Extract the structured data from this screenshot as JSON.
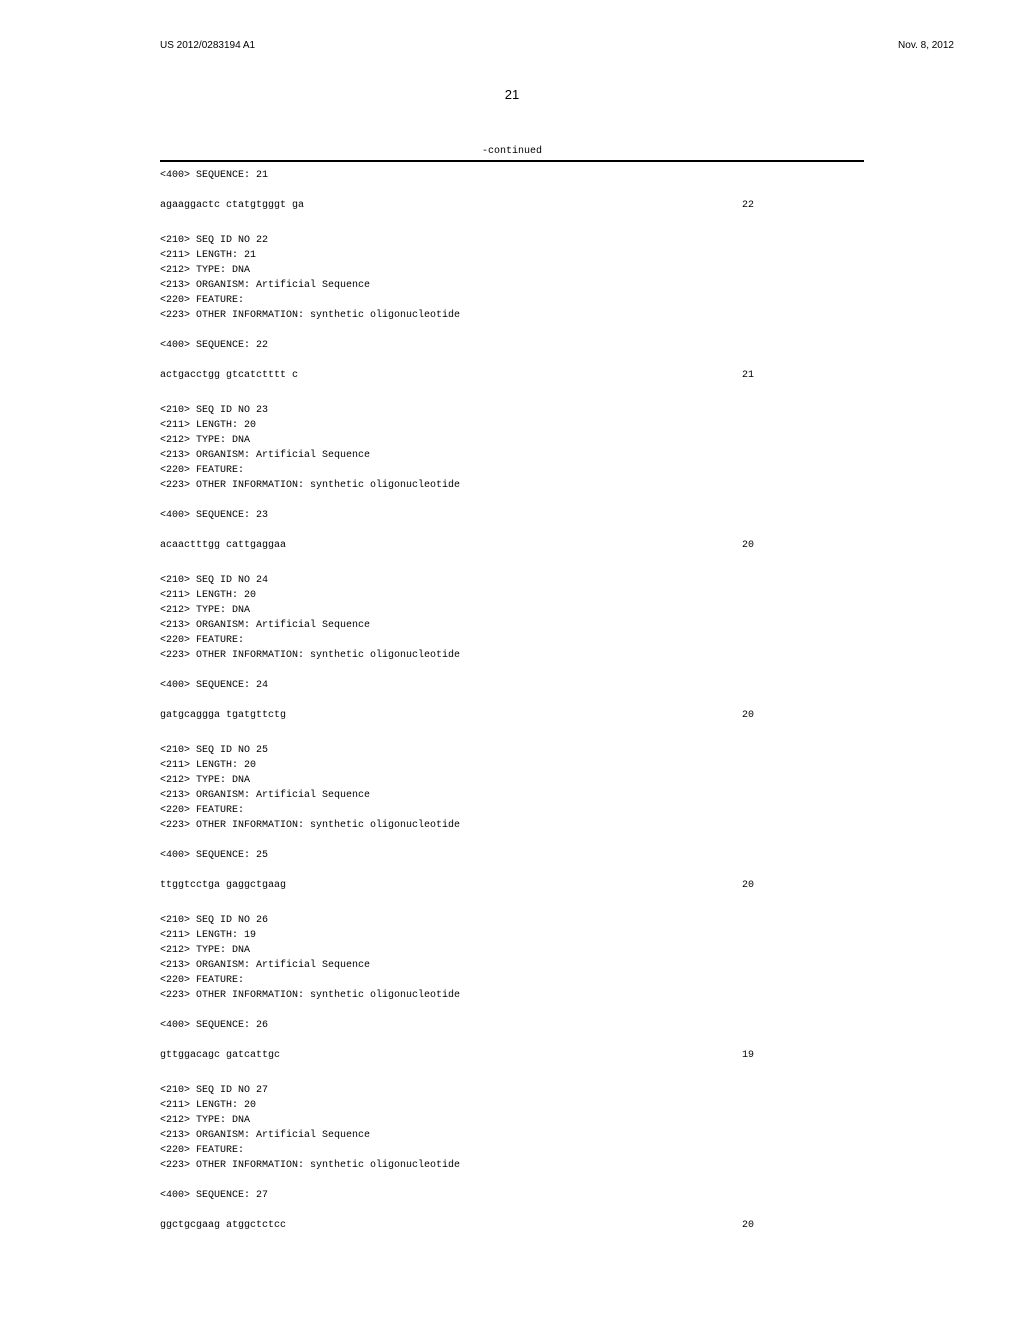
{
  "header": {
    "pub_number": "US 2012/0283194 A1",
    "pub_date": "Nov. 8, 2012"
  },
  "page_number": "21",
  "continued_label": "-continued",
  "sequences": [
    {
      "seq_400": "<400> SEQUENCE: 21",
      "data": "agaaggactc ctatgtgggt ga",
      "length": "22"
    },
    {
      "seq_210": "<210> SEQ ID NO 22",
      "seq_211": "<211> LENGTH: 21",
      "seq_212": "<212> TYPE: DNA",
      "seq_213": "<213> ORGANISM: Artificial Sequence",
      "seq_220": "<220> FEATURE:",
      "seq_223": "<223> OTHER INFORMATION: synthetic oligonucleotide",
      "seq_400": "<400> SEQUENCE: 22",
      "data": "actgacctgg gtcatctttt c",
      "length": "21"
    },
    {
      "seq_210": "<210> SEQ ID NO 23",
      "seq_211": "<211> LENGTH: 20",
      "seq_212": "<212> TYPE: DNA",
      "seq_213": "<213> ORGANISM: Artificial Sequence",
      "seq_220": "<220> FEATURE:",
      "seq_223": "<223> OTHER INFORMATION: synthetic oligonucleotide",
      "seq_400": "<400> SEQUENCE: 23",
      "data": "acaactttgg cattgaggaa",
      "length": "20"
    },
    {
      "seq_210": "<210> SEQ ID NO 24",
      "seq_211": "<211> LENGTH: 20",
      "seq_212": "<212> TYPE: DNA",
      "seq_213": "<213> ORGANISM: Artificial Sequence",
      "seq_220": "<220> FEATURE:",
      "seq_223": "<223> OTHER INFORMATION: synthetic oligonucleotide",
      "seq_400": "<400> SEQUENCE: 24",
      "data": "gatgcaggga tgatgttctg",
      "length": "20"
    },
    {
      "seq_210": "<210> SEQ ID NO 25",
      "seq_211": "<211> LENGTH: 20",
      "seq_212": "<212> TYPE: DNA",
      "seq_213": "<213> ORGANISM: Artificial Sequence",
      "seq_220": "<220> FEATURE:",
      "seq_223": "<223> OTHER INFORMATION: synthetic oligonucleotide",
      "seq_400": "<400> SEQUENCE: 25",
      "data": "ttggtcctga gaggctgaag",
      "length": "20"
    },
    {
      "seq_210": "<210> SEQ ID NO 26",
      "seq_211": "<211> LENGTH: 19",
      "seq_212": "<212> TYPE: DNA",
      "seq_213": "<213> ORGANISM: Artificial Sequence",
      "seq_220": "<220> FEATURE:",
      "seq_223": "<223> OTHER INFORMATION: synthetic oligonucleotide",
      "seq_400": "<400> SEQUENCE: 26",
      "data": "gttggacagc gatcattgc",
      "length": "19"
    },
    {
      "seq_210": "<210> SEQ ID NO 27",
      "seq_211": "<211> LENGTH: 20",
      "seq_212": "<212> TYPE: DNA",
      "seq_213": "<213> ORGANISM: Artificial Sequence",
      "seq_220": "<220> FEATURE:",
      "seq_223": "<223> OTHER INFORMATION: synthetic oligonucleotide",
      "seq_400": "<400> SEQUENCE: 27",
      "data": "ggctgcgaag atggctctcc",
      "length": "20"
    }
  ]
}
